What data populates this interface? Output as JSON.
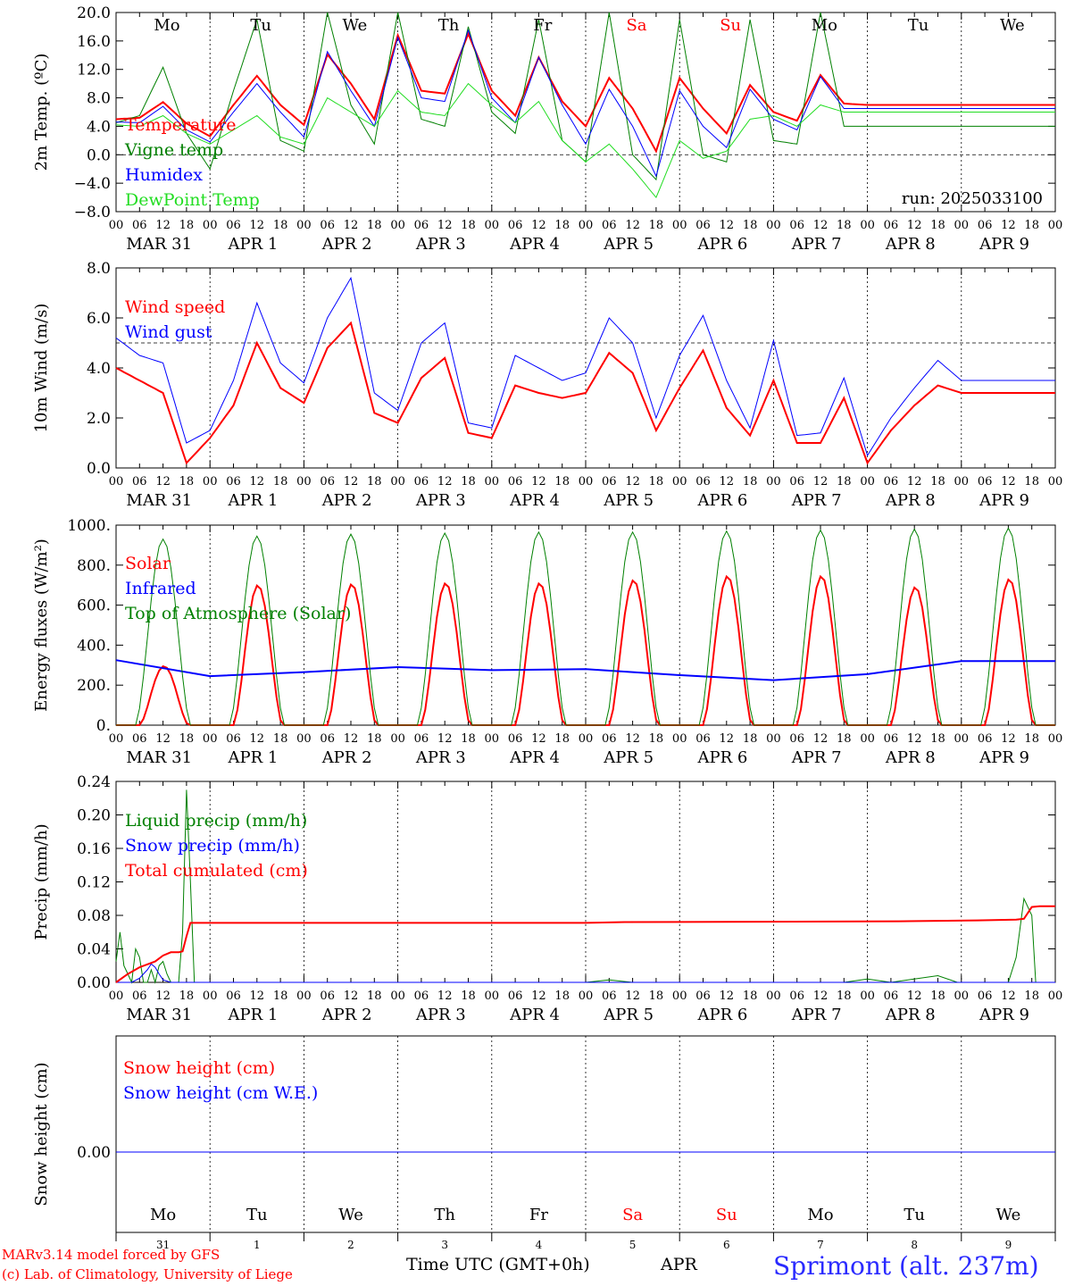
{
  "colors": {
    "red": "#ff0000",
    "green": "#008000",
    "blue": "#0000ff",
    "lightgreen": "#22dd22",
    "black": "#000000"
  },
  "days": [
    "Mo",
    "Tu",
    "We",
    "Th",
    "Fr",
    "Sa",
    "Su",
    "Mo",
    "Tu",
    "We"
  ],
  "day_colors": [
    "#000000",
    "#000000",
    "#000000",
    "#000000",
    "#000000",
    "#ff0000",
    "#ff0000",
    "#000000",
    "#000000",
    "#000000"
  ],
  "date_labels": [
    "MAR 31",
    "APR  1",
    "APR  2",
    "APR  3",
    "APR  4",
    "APR  5",
    "APR  6",
    "APR  7",
    "APR  8",
    "APR  9"
  ],
  "hour_labels": [
    "00",
    "06",
    "12",
    "18"
  ],
  "day_numbers": [
    "31",
    "1",
    "2",
    "3",
    "4",
    "5",
    "6",
    "7",
    "8",
    "9"
  ],
  "footer": {
    "model_line1": "MARv3.14 model forced by GFS",
    "model_line2": "(c) Lab. of Climatology, University of Liege",
    "time_axis": "Time UTC (GMT+0h)",
    "month": "APR",
    "station": "Sprimont (alt. 237m)"
  },
  "chart_data": [
    {
      "type": "line",
      "ylabel": "2m Temp. (ºC)",
      "ylim": [
        -8,
        20
      ],
      "yticks": [
        20.0,
        16.0,
        12.0,
        8.0,
        4.0,
        0.0,
        -4.0,
        -8.0
      ],
      "ytick_labels": [
        "20.0",
        "16.0",
        "12.0",
        "8.0",
        "4.0",
        "0.0",
        "−4.0",
        "−8.0"
      ],
      "refline": 0,
      "annotation": "run: 2025033100",
      "x_unit": "hours since MAR 31 00 UTC",
      "series": [
        {
          "name": "Temperature",
          "color": "#ff0000",
          "width": 2,
          "x": [
            0,
            6,
            12,
            18,
            24,
            30,
            36,
            42,
            48,
            54,
            60,
            66,
            72,
            78,
            84,
            90,
            96,
            102,
            108,
            114,
            120,
            126,
            132,
            138,
            144,
            150,
            156,
            162,
            168,
            174,
            180,
            186,
            192,
            198,
            204,
            210,
            216,
            222,
            228,
            234,
            240
          ],
          "values": [
            5.0,
            5.2,
            7.4,
            4.4,
            2.6,
            7.0,
            11.1,
            7.0,
            4.2,
            14.1,
            10.0,
            5.0,
            16.8,
            9.0,
            8.6,
            17.0,
            9.0,
            5.5,
            13.7,
            7.5,
            4.0,
            10.8,
            6.5,
            0.5,
            10.8,
            6.5,
            3.0,
            9.8,
            6.0,
            4.8,
            11.2,
            7.2,
            7.0,
            7.0,
            7.0,
            7.0,
            7.0,
            7.0,
            7.0,
            7.0,
            7.0
          ]
        },
        {
          "name": "Vigne temp",
          "color": "#008000",
          "width": 1,
          "x": [
            0,
            6,
            12,
            18,
            24,
            30,
            36,
            42,
            48,
            54,
            60,
            66,
            72,
            78,
            84,
            90,
            96,
            102,
            108,
            114,
            120,
            126,
            132,
            138,
            144,
            150,
            156,
            162,
            168,
            174,
            180,
            186,
            192,
            198,
            204,
            210,
            216,
            222,
            228,
            234,
            240
          ],
          "values": [
            4.5,
            5.5,
            12.3,
            3.0,
            -2.0,
            9.0,
            19.0,
            2.0,
            0.5,
            20.0,
            7.0,
            1.5,
            20.0,
            5.0,
            4.0,
            18.0,
            6.0,
            3.0,
            19.0,
            2.0,
            -1.0,
            20.0,
            0.0,
            -3.5,
            19.0,
            0.0,
            -1.0,
            19.0,
            2.0,
            1.5,
            20.0,
            4.0,
            4.0,
            4.0,
            4.0,
            4.0,
            4.0,
            4.0,
            4.0,
            4.0,
            4.0
          ]
        },
        {
          "name": "Humidex",
          "color": "#0000ff",
          "width": 1,
          "x": [
            0,
            6,
            12,
            18,
            24,
            30,
            36,
            42,
            48,
            54,
            60,
            66,
            72,
            78,
            84,
            90,
            96,
            102,
            108,
            114,
            120,
            126,
            132,
            138,
            144,
            150,
            156,
            162,
            168,
            174,
            180,
            186,
            192,
            198,
            204,
            210,
            216,
            222,
            228,
            234,
            240
          ],
          "values": [
            4.6,
            4.5,
            6.8,
            3.5,
            1.8,
            6.0,
            10.0,
            6.0,
            2.5,
            14.5,
            9.0,
            4.0,
            16.5,
            8.0,
            7.5,
            17.5,
            8.0,
            4.5,
            13.7,
            7.0,
            1.5,
            9.2,
            4.0,
            -3.0,
            9.0,
            4.0,
            1.0,
            9.2,
            5.0,
            3.5,
            11.0,
            6.5,
            6.5,
            6.5,
            6.5,
            6.5,
            6.5,
            6.5,
            6.5,
            6.5,
            6.5
          ]
        },
        {
          "name": "DewPoint Temp",
          "color": "#22dd22",
          "width": 1,
          "x": [
            0,
            6,
            12,
            18,
            24,
            30,
            36,
            42,
            48,
            54,
            60,
            66,
            72,
            78,
            84,
            90,
            96,
            102,
            108,
            114,
            120,
            126,
            132,
            138,
            144,
            150,
            156,
            162,
            168,
            174,
            180,
            186,
            192,
            198,
            204,
            210,
            216,
            222,
            228,
            234,
            240
          ],
          "values": [
            4.2,
            4.0,
            5.5,
            3.0,
            1.5,
            3.5,
            5.5,
            2.5,
            1.5,
            8.0,
            6.0,
            4.0,
            9.0,
            6.0,
            5.5,
            10.0,
            7.0,
            4.5,
            7.5,
            2.0,
            -1.0,
            1.5,
            -2.0,
            -6.0,
            2.0,
            -0.5,
            0.5,
            5.0,
            5.5,
            4.0,
            7.0,
            6.0,
            6.0,
            6.0,
            6.0,
            6.0,
            6.0,
            6.0,
            6.0,
            6.0,
            6.0
          ]
        }
      ]
    },
    {
      "type": "line",
      "ylabel": "10m Wind (m/s)",
      "ylim": [
        0,
        8
      ],
      "yticks": [
        8.0,
        6.0,
        4.0,
        2.0,
        0.0
      ],
      "ytick_labels": [
        "8.0",
        "6.0",
        "4.0",
        "2.0",
        "0.0"
      ],
      "refline": 5,
      "series": [
        {
          "name": "Wind speed",
          "color": "#ff0000",
          "width": 2,
          "x": [
            0,
            6,
            12,
            18,
            24,
            30,
            36,
            42,
            48,
            54,
            60,
            66,
            72,
            78,
            84,
            90,
            96,
            102,
            108,
            114,
            120,
            126,
            132,
            138,
            144,
            150,
            156,
            162,
            168,
            174,
            180,
            186,
            192,
            198,
            204,
            210,
            216,
            222,
            228,
            234,
            240
          ],
          "values": [
            4.0,
            3.5,
            3.0,
            0.2,
            1.2,
            2.5,
            5.0,
            3.2,
            2.6,
            4.8,
            5.8,
            2.2,
            1.8,
            3.6,
            4.4,
            1.4,
            1.2,
            3.3,
            3.0,
            2.8,
            3.0,
            4.6,
            3.8,
            1.5,
            3.2,
            4.7,
            2.4,
            1.3,
            3.5,
            1.0,
            1.0,
            2.8,
            0.2,
            1.5,
            2.5,
            3.3,
            3.0,
            3.0,
            3.0,
            3.0,
            3.0
          ]
        },
        {
          "name": "Wind gust",
          "color": "#0000ff",
          "width": 1,
          "x": [
            0,
            6,
            12,
            18,
            24,
            30,
            36,
            42,
            48,
            54,
            60,
            66,
            72,
            78,
            84,
            90,
            96,
            102,
            108,
            114,
            120,
            126,
            132,
            138,
            144,
            150,
            156,
            162,
            168,
            174,
            180,
            186,
            192,
            198,
            204,
            210,
            216,
            222,
            228,
            234,
            240
          ],
          "values": [
            5.2,
            4.5,
            4.2,
            1.0,
            1.5,
            3.5,
            6.6,
            4.2,
            3.4,
            6.0,
            7.6,
            3.0,
            2.3,
            5.0,
            5.8,
            1.8,
            1.6,
            4.5,
            4.0,
            3.5,
            3.8,
            6.0,
            5.0,
            2.0,
            4.5,
            6.1,
            3.5,
            1.6,
            5.1,
            1.3,
            1.4,
            3.6,
            0.5,
            2.0,
            3.2,
            4.3,
            3.5,
            3.5,
            3.5,
            3.5,
            3.5
          ]
        }
      ]
    },
    {
      "type": "line",
      "ylabel": "Energy fluxes (W/m²)",
      "ylim": [
        0,
        1000
      ],
      "yticks": [
        1000,
        800,
        600,
        400,
        200,
        0
      ],
      "ytick_labels": [
        "1000.",
        "800.",
        "600.",
        "400.",
        "200.",
        "0."
      ],
      "series": [
        {
          "name": "Solar",
          "color": "#ff0000",
          "width": 2,
          "peaks": [
            295,
            700,
            705,
            710,
            710,
            725,
            745,
            745,
            690,
            730
          ]
        },
        {
          "name": "Infrared",
          "color": "#0000ff",
          "width": 2,
          "x": [
            0,
            24,
            48,
            72,
            96,
            120,
            144,
            168,
            192,
            216,
            240
          ],
          "values": [
            325,
            245,
            265,
            290,
            275,
            280,
            250,
            225,
            255,
            320,
            320
          ]
        },
        {
          "name": "Top of Atmosphere (Solar)",
          "color": "#008000",
          "width": 1,
          "peaks": [
            930,
            945,
            955,
            960,
            965,
            965,
            970,
            975,
            980,
            985
          ]
        }
      ]
    },
    {
      "type": "line",
      "ylabel": "Precip (mm/h)",
      "ylim": [
        0,
        0.24
      ],
      "yticks": [
        0.24,
        0.2,
        0.16,
        0.12,
        0.08,
        0.04,
        0.0
      ],
      "ytick_labels": [
        "0.24",
        "0.20",
        "0.16",
        "0.12",
        "0.08",
        "0.04",
        "0.00"
      ],
      "series": [
        {
          "name": "Liquid precip (mm/h)",
          "color": "#008000",
          "width": 1,
          "x": [
            0,
            1,
            2,
            3,
            4,
            5,
            6,
            7,
            8,
            9,
            10,
            11,
            12,
            13,
            14,
            15,
            16,
            17,
            18,
            19,
            20,
            21,
            22,
            24,
            120,
            126,
            132,
            186,
            192,
            198,
            210,
            215,
            222,
            228,
            230,
            232,
            234,
            235,
            236,
            238,
            240
          ],
          "values": [
            0.025,
            0.06,
            0.02,
            0.01,
            0.0,
            0.04,
            0.03,
            0.0,
            0.0,
            0.015,
            0.0,
            0.02,
            0.025,
            0.01,
            0.0,
            0.0,
            0.0,
            0.06,
            0.23,
            0.12,
            0.0,
            0.0,
            0.0,
            0.0,
            0.0,
            0.003,
            0.0,
            0.0,
            0.004,
            0.0,
            0.008,
            0.0,
            0.0,
            0.0,
            0.03,
            0.1,
            0.08,
            0.0,
            0.0,
            0.0,
            0.0
          ]
        },
        {
          "name": "Snow precip (mm/h)",
          "color": "#0000ff",
          "width": 1,
          "x": [
            0,
            4,
            6,
            8,
            9,
            10,
            11,
            12,
            14,
            16,
            18,
            24,
            240
          ],
          "values": [
            0.0,
            0.0,
            0.005,
            0.015,
            0.022,
            0.018,
            0.01,
            0.003,
            0.0,
            0.0,
            0.0,
            0.0,
            0.0
          ]
        },
        {
          "name": "Total cumulated (cm)",
          "color": "#ff0000",
          "width": 2,
          "x": [
            0,
            3,
            6,
            10,
            12,
            14,
            16,
            17,
            18,
            19,
            24,
            120,
            130,
            200,
            220,
            230,
            232,
            234,
            236,
            240
          ],
          "values": [
            0.0,
            0.01,
            0.018,
            0.025,
            0.032,
            0.036,
            0.036,
            0.037,
            0.055,
            0.071,
            0.071,
            0.071,
            0.072,
            0.073,
            0.074,
            0.075,
            0.076,
            0.09,
            0.091,
            0.091
          ]
        }
      ]
    },
    {
      "type": "line",
      "ylabel": "Snow height (cm)",
      "ytick_labels": [
        "0.00"
      ],
      "series": [
        {
          "name": "Snow height (cm)",
          "color": "#ff0000",
          "width": 1,
          "x": [
            0,
            240
          ],
          "values": [
            0,
            0
          ]
        },
        {
          "name": "Snow height (cm W.E.)",
          "color": "#0000ff",
          "width": 1,
          "x": [
            0,
            240
          ],
          "values": [
            0,
            0
          ]
        }
      ]
    }
  ]
}
